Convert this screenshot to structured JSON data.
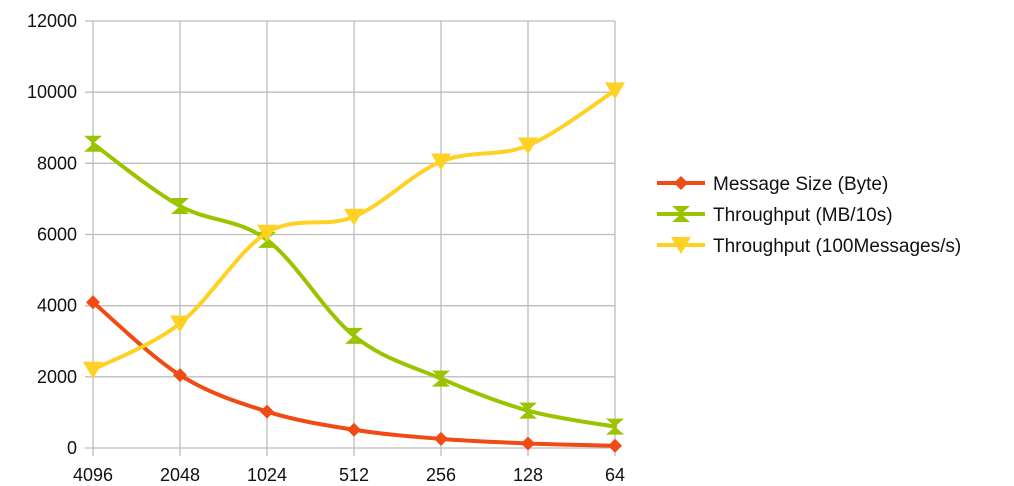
{
  "chart_data": {
    "type": "line",
    "categories": [
      "4096",
      "2048",
      "1024",
      "512",
      "256",
      "128",
      "64"
    ],
    "ylim": [
      0,
      12000
    ],
    "yticks": [
      0,
      2000,
      4000,
      6000,
      8000,
      10000,
      12000
    ],
    "grid": true,
    "smooth": true,
    "legend_position": "right",
    "series": [
      {
        "name": "Message Size (Byte)",
        "color": "#f04b14",
        "marker": "diamond",
        "values": [
          4096,
          2048,
          1024,
          512,
          256,
          128,
          64
        ]
      },
      {
        "name": "Throughput (MB/10s)",
        "color": "#9bc400",
        "marker": "hourglass",
        "values": [
          8550,
          6800,
          5850,
          3150,
          1950,
          1050,
          600
        ]
      },
      {
        "name": "Throughput (100Messages/s)",
        "color": "#ffd124",
        "marker": "triangle-down",
        "values": [
          2200,
          3500,
          6050,
          6500,
          8050,
          8500,
          10050
        ]
      }
    ]
  }
}
